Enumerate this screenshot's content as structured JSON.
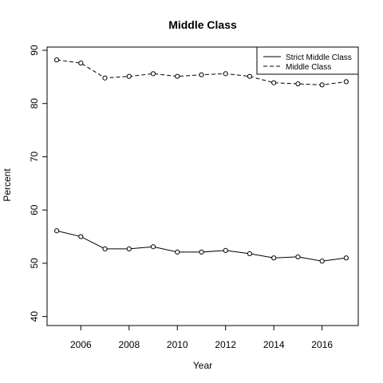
{
  "chart_data": {
    "type": "line",
    "title": "Middle Class",
    "xlabel": "Year",
    "ylabel": "Percent",
    "x": [
      2005,
      2006,
      2007,
      2008,
      2009,
      2010,
      2011,
      2012,
      2013,
      2014,
      2015,
      2016,
      2017
    ],
    "xlim": [
      2004.6,
      2017.5
    ],
    "ylim": [
      38.3,
      90.6
    ],
    "x_ticks": [
      "2006",
      "2008",
      "2010",
      "2012",
      "2014",
      "2016"
    ],
    "y_ticks": [
      "40",
      "50",
      "60",
      "70",
      "80",
      "90"
    ],
    "grid": false,
    "legend_position": "top-right",
    "series": [
      {
        "name": "Strict Middle Class",
        "line_style": "solid",
        "marker": "open-circle",
        "color": "#000000",
        "values": [
          56.1,
          55.0,
          52.7,
          52.7,
          53.1,
          52.1,
          52.1,
          52.4,
          51.8,
          51.0,
          51.2,
          50.4,
          51.0
        ]
      },
      {
        "name": "Middle Class",
        "line_style": "dashed",
        "marker": "open-circle",
        "color": "#000000",
        "values": [
          88.2,
          87.6,
          84.8,
          85.1,
          85.6,
          85.1,
          85.4,
          85.6,
          85.1,
          83.9,
          83.7,
          83.5,
          84.1
        ]
      }
    ]
  }
}
